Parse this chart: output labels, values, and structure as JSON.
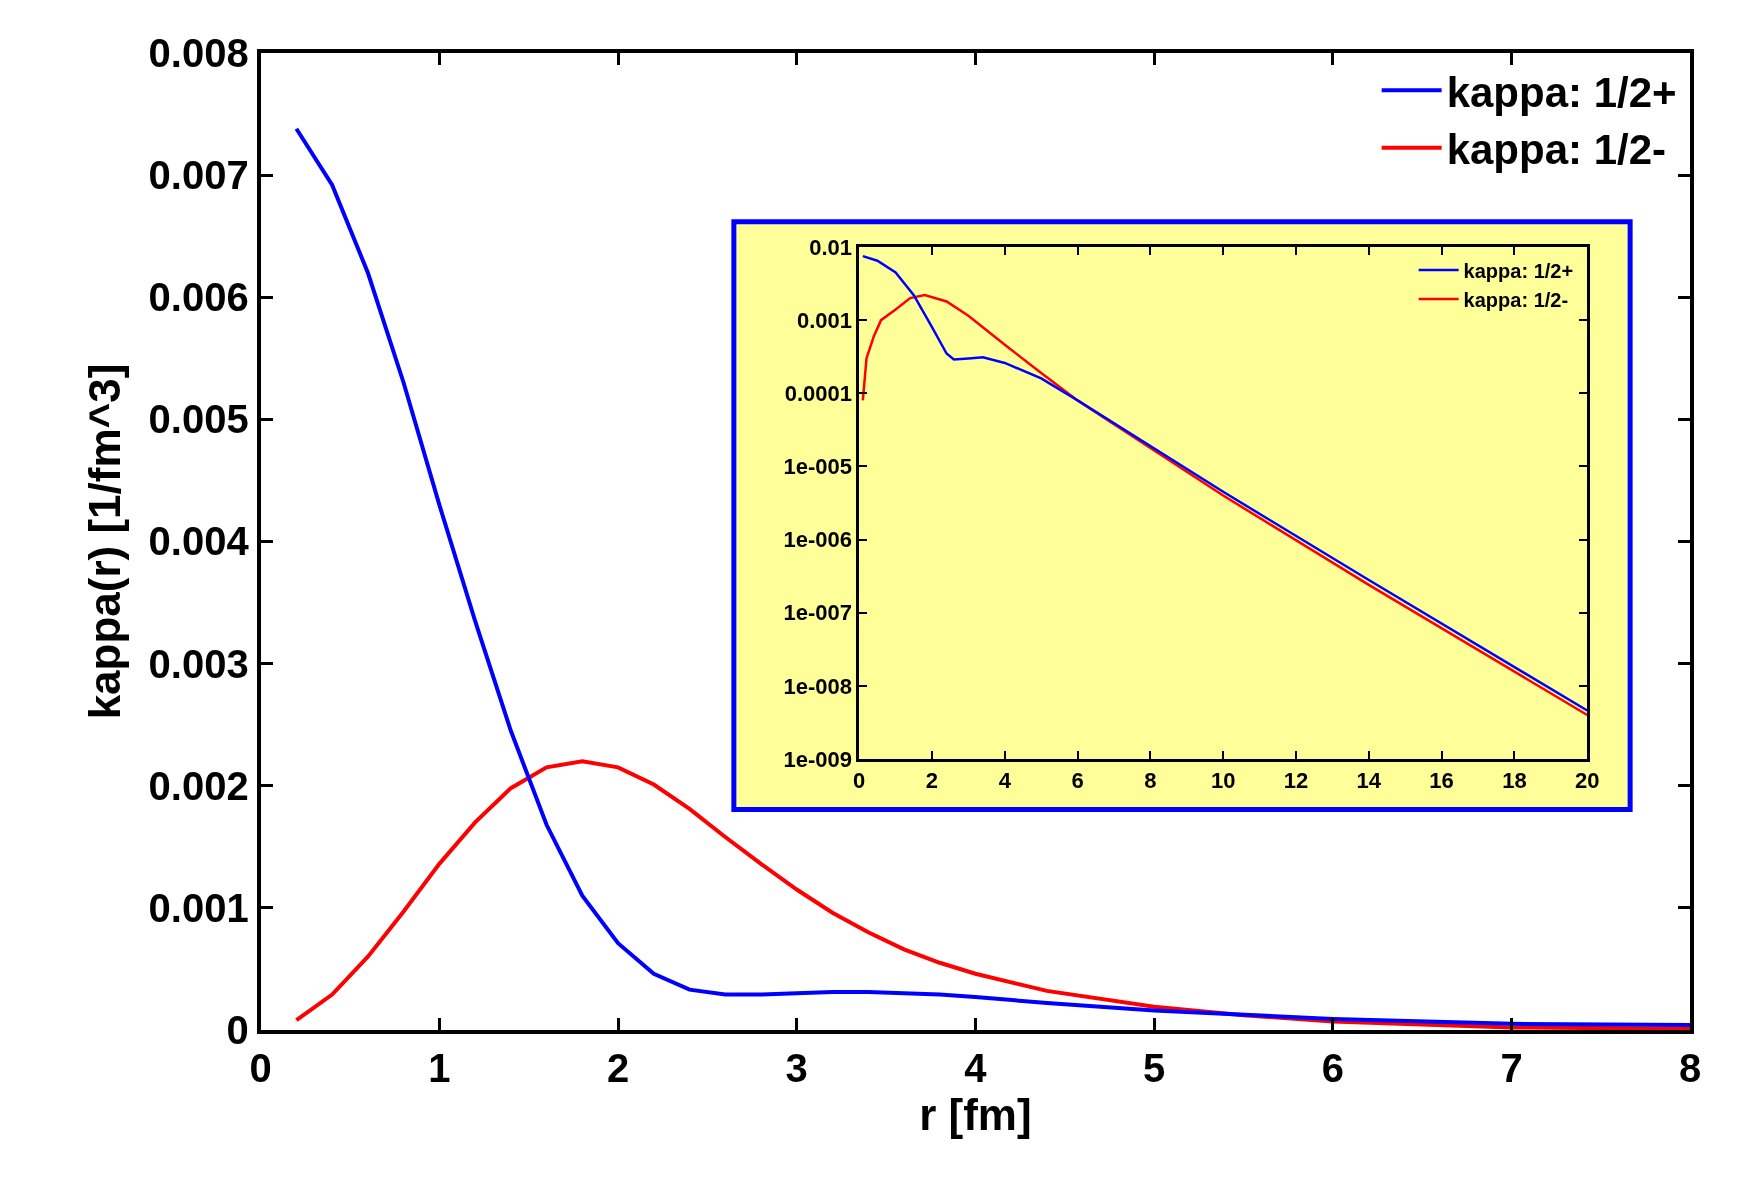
{
  "chart_data": [
    {
      "type": "line",
      "xlabel": "r [fm]",
      "ylabel": "kappa(r) [1/fm^3]",
      "xlim": [
        0,
        8
      ],
      "xticks": [
        0,
        1,
        2,
        3,
        4,
        5,
        6,
        7,
        8
      ],
      "ylim": [
        0,
        0.008
      ],
      "yticks": [
        0,
        0.001,
        0.002,
        0.003,
        0.004,
        0.005,
        0.006,
        0.007,
        0.008
      ],
      "grid": false,
      "legend": "top right",
      "line_style": "solid",
      "marker": "none",
      "series": [
        {
          "name": "kappa: 1/2+",
          "color": "#0000ff",
          "x": [
            0.2,
            0.4,
            0.6,
            0.8,
            1.0,
            1.2,
            1.4,
            1.6,
            1.8,
            2.0,
            2.2,
            2.4,
            2.6,
            2.8,
            3.0,
            3.2,
            3.4,
            3.6,
            3.8,
            4.0,
            4.4,
            5.0,
            6.0,
            7.0,
            8.0
          ],
          "values": [
            0.00738,
            0.00692,
            0.0062,
            0.0053,
            0.0043,
            0.00335,
            0.00245,
            0.00168,
            0.0011,
            0.00071,
            0.00046,
            0.00033,
            0.00029,
            0.00029,
            0.0003,
            0.00031,
            0.00031,
            0.0003,
            0.00029,
            0.00027,
            0.00022,
            0.00016,
            9e-05,
            5e-05,
            4e-05
          ]
        },
        {
          "name": "kappa: 1/2-",
          "color": "#ff0000",
          "x": [
            0.2,
            0.4,
            0.6,
            0.8,
            1.0,
            1.2,
            1.4,
            1.6,
            1.8,
            2.0,
            2.2,
            2.4,
            2.6,
            2.8,
            3.0,
            3.2,
            3.4,
            3.6,
            3.8,
            4.0,
            4.4,
            5.0,
            5.5,
            6.0,
            7.0,
            8.0
          ],
          "values": [
            8e-05,
            0.00029,
            0.0006,
            0.00097,
            0.00136,
            0.0017,
            0.00198,
            0.00215,
            0.0022,
            0.00215,
            0.00201,
            0.00181,
            0.00158,
            0.00136,
            0.00115,
            0.00096,
            0.0008,
            0.00066,
            0.00055,
            0.00046,
            0.00032,
            0.00019,
            0.00012,
            7e-05,
            2e-05,
            1e-05
          ]
        }
      ]
    },
    {
      "type": "line",
      "log": "y",
      "xlim": [
        0,
        20
      ],
      "xticks": [
        0,
        2,
        4,
        6,
        8,
        10,
        12,
        14,
        16,
        18,
        20
      ],
      "ylim": [
        1e-09,
        0.01
      ],
      "yticks": [
        {
          "value": 1e-09,
          "label": "1e-009"
        },
        {
          "value": 1e-08,
          "label": "1e-008"
        },
        {
          "value": 1e-07,
          "label": "1e-007"
        },
        {
          "value": 1e-06,
          "label": "1e-006"
        },
        {
          "value": 1e-05,
          "label": "1e-005"
        },
        0.0001,
        0.001,
        0.01
      ],
      "grid": false,
      "legend": "top right",
      "line_style": "solid",
      "marker": "none",
      "series": [
        {
          "name": "kappa: 1/2+",
          "color": "#0000ff",
          "x": [
            0.1,
            0.5,
            1.0,
            1.5,
            2.0,
            2.4,
            2.6,
            3.0,
            3.4,
            4.0,
            5.0,
            6.0,
            10.0,
            14.0,
            20.0
          ],
          "values": [
            0.0075,
            0.0065,
            0.0045,
            0.0022,
            0.0008,
            0.00035,
            0.00029,
            0.0003,
            0.00031,
            0.00026,
            0.00016,
            8e-05,
            4.5e-06,
            2.8e-07,
            4.6e-09
          ]
        },
        {
          "name": "kappa: 1/2-",
          "color": "#ff0000",
          "x": [
            0.1,
            0.2,
            0.4,
            0.6,
            1.0,
            1.4,
            1.8,
            2.4,
            3.0,
            4.0,
            5.0,
            6.0,
            10.0,
            14.0,
            20.0
          ],
          "values": [
            8e-05,
            0.0003,
            0.0006,
            0.001,
            0.0014,
            0.002,
            0.0022,
            0.0018,
            0.00115,
            0.00046,
            0.00019,
            8e-05,
            4e-06,
            2.4e-07,
            4e-09
          ]
        }
      ]
    }
  ]
}
